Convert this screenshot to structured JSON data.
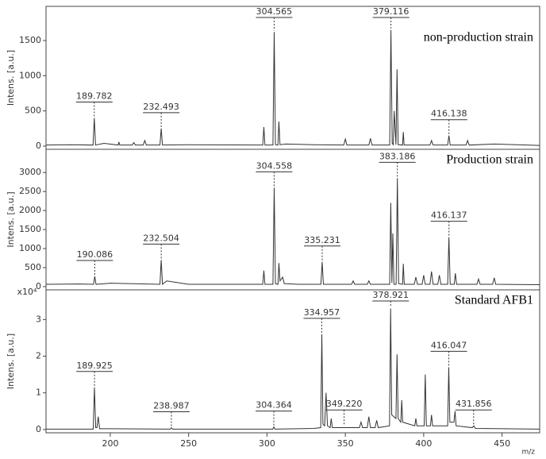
{
  "chart_data": [
    {
      "type": "line",
      "ylabel": "Intens. [a.u.]",
      "annotation": "non-production strain",
      "color": "#333333",
      "xlim": [
        159,
        474
      ],
      "ylim": [
        -45,
        1985
      ],
      "yticks": [
        0,
        500,
        1000,
        1500
      ],
      "x": [
        159,
        175,
        189,
        189.8,
        190.6,
        196,
        205,
        205.5,
        206,
        214,
        215,
        216,
        221,
        222,
        223,
        231.7,
        232.5,
        233.3,
        250,
        297.3,
        298,
        298.7,
        303.8,
        304.6,
        305.4,
        307,
        307.6,
        308.3,
        312,
        330,
        349,
        350,
        351,
        365,
        366,
        367,
        378.3,
        379.1,
        379.9,
        380.6,
        381.2,
        382.3,
        383,
        383.7,
        386.5,
        387,
        387.5,
        404,
        405,
        406,
        415.3,
        416.1,
        416.9,
        427,
        428,
        429,
        445,
        474
      ],
      "values": [
        15,
        20,
        15,
        400,
        15,
        40,
        15,
        60,
        15,
        15,
        50,
        15,
        15,
        80,
        15,
        15,
        250,
        15,
        20,
        15,
        270,
        15,
        15,
        1620,
        20,
        15,
        350,
        20,
        30,
        20,
        15,
        100,
        15,
        15,
        110,
        15,
        15,
        1650,
        40,
        20,
        500,
        20,
        1090,
        20,
        15,
        200,
        15,
        15,
        80,
        15,
        15,
        150,
        15,
        15,
        80,
        15,
        30,
        10
      ],
      "peaks": [
        {
          "x": 189.782,
          "y": 400,
          "label": "189.782"
        },
        {
          "x": 232.493,
          "y": 250,
          "label": "232.493"
        },
        {
          "x": 304.565,
          "y": 1620,
          "label": "304.565"
        },
        {
          "x": 379.116,
          "y": 1650,
          "label": "379.116"
        },
        {
          "x": 416.138,
          "y": 150,
          "label": "416.138"
        }
      ]
    },
    {
      "type": "line",
      "ylabel": "Intens. [a.u.]",
      "annotation": "Production strain",
      "color": "#333333",
      "xlim": [
        159,
        474
      ],
      "ylim": [
        -85,
        3610
      ],
      "yticks": [
        0,
        500,
        1000,
        1500,
        2000,
        2500,
        3000
      ],
      "x": [
        159,
        180,
        189.3,
        190.1,
        190.9,
        200,
        231.7,
        232.5,
        233.3,
        236,
        250,
        297.3,
        298,
        298.7,
        303.8,
        304.6,
        305.4,
        307,
        307.6,
        308.3,
        310,
        311,
        320,
        334.4,
        335.2,
        336,
        354,
        355,
        356,
        364,
        365,
        366,
        378.3,
        379,
        379.7,
        380.3,
        381,
        382.4,
        383.2,
        384,
        386.5,
        387,
        387.6,
        394,
        395,
        396,
        399,
        400,
        401,
        404,
        405,
        406,
        409,
        410,
        411,
        415.3,
        416.1,
        416.9,
        419.5,
        420.2,
        421,
        434,
        435,
        436,
        444,
        445,
        446,
        474
      ],
      "values": [
        60,
        70,
        60,
        270,
        60,
        90,
        60,
        700,
        60,
        150,
        60,
        60,
        420,
        60,
        60,
        2600,
        80,
        60,
        620,
        150,
        250,
        80,
        60,
        60,
        650,
        60,
        60,
        150,
        60,
        60,
        150,
        60,
        60,
        2200,
        100,
        1400,
        60,
        60,
        2850,
        80,
        60,
        600,
        60,
        60,
        250,
        60,
        60,
        300,
        60,
        60,
        400,
        60,
        60,
        300,
        60,
        60,
        1300,
        60,
        60,
        350,
        60,
        60,
        200,
        60,
        60,
        230,
        60,
        50
      ],
      "peaks": [
        {
          "x": 190.086,
          "y": 270,
          "label": "190.086"
        },
        {
          "x": 232.504,
          "y": 700,
          "label": "232.504"
        },
        {
          "x": 304.558,
          "y": 2600,
          "label": "304.558"
        },
        {
          "x": 335.231,
          "y": 650,
          "label": "335.231"
        },
        {
          "x": 383.186,
          "y": 2850,
          "label": "383.186"
        },
        {
          "x": 416.137,
          "y": 1300,
          "label": "416.137"
        }
      ]
    },
    {
      "type": "line",
      "ylabel": "Intens. [a.u.]",
      "y_multiplier": "x10⁴",
      "annotation": "Standard AFB1",
      "color": "#333333",
      "xlim": [
        159,
        474
      ],
      "xticks": [
        200,
        250,
        300,
        350,
        400,
        450
      ],
      "xlabel": "m/z",
      "ylim": [
        -0.09,
        3.81
      ],
      "yticks": [
        0,
        1,
        2,
        3
      ],
      "x": [
        159,
        185,
        189.1,
        189.9,
        190.7,
        191.5,
        192.3,
        193.2,
        200,
        238.3,
        239,
        239.7,
        303.7,
        304.4,
        305.1,
        330,
        334.3,
        335,
        335.7,
        336.8,
        337.7,
        338.6,
        340.3,
        341,
        341.7,
        359,
        360,
        361,
        364,
        365,
        366,
        369,
        370,
        371,
        378.2,
        378.9,
        379.6,
        382.3,
        383,
        383.7,
        385.4,
        386,
        386.6,
        394.3,
        395,
        395.7,
        400.3,
        401,
        401.7,
        404.3,
        405,
        405.7,
        415.3,
        416,
        416.7,
        419.3,
        420,
        420.7,
        431,
        432,
        433,
        474
      ],
      "values": [
        0.01,
        0.01,
        0.01,
        1.15,
        0.05,
        0.05,
        0.35,
        0.02,
        0.02,
        0.01,
        0.05,
        0.01,
        0.01,
        0.07,
        0.01,
        0.03,
        0.05,
        2.6,
        0.15,
        0.1,
        1.0,
        0.1,
        0.05,
        0.3,
        0.05,
        0.05,
        0.2,
        0.05,
        0.05,
        0.35,
        0.05,
        0.05,
        0.25,
        0.05,
        0.1,
        3.3,
        0.4,
        0.3,
        2.05,
        0.3,
        0.2,
        0.8,
        0.2,
        0.1,
        0.3,
        0.1,
        0.1,
        1.5,
        0.1,
        0.1,
        0.4,
        0.1,
        0.1,
        1.7,
        0.2,
        0.2,
        0.5,
        0.1,
        0.05,
        0.1,
        0.03,
        0.01
      ],
      "peaks": [
        {
          "x": 189.925,
          "y": 1.15,
          "label": "189.925"
        },
        {
          "x": 238.987,
          "y": 0.05,
          "label": "238.987"
        },
        {
          "x": 304.364,
          "y": 0.07,
          "label": "304.364"
        },
        {
          "x": 334.957,
          "y": 2.6,
          "label": "334.957"
        },
        {
          "x": 349.22,
          "y": 0.1,
          "label": "349.220"
        },
        {
          "x": 378.921,
          "y": 3.3,
          "label": "378.921"
        },
        {
          "x": 416.047,
          "y": 1.7,
          "label": "416.047"
        },
        {
          "x": 431.856,
          "y": 0.1,
          "label": "431.856"
        }
      ]
    }
  ]
}
